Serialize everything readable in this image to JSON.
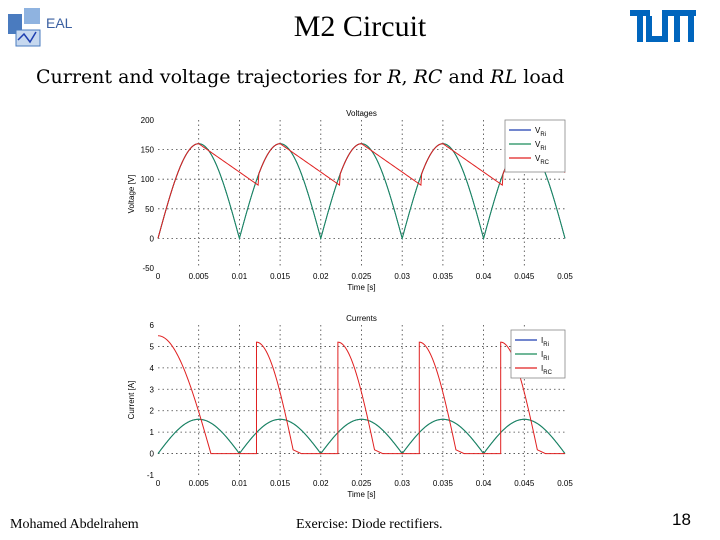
{
  "slide": {
    "logo_left_text": "EAL",
    "title": "M2 Circuit",
    "subtitle_parts": [
      "Current and voltage trajectories for ",
      "R",
      ", ",
      "RC",
      " and ",
      "RL",
      " load"
    ],
    "footer_author": "Mohamed Abdelrahem",
    "footer_topic": "Exercise: Diode rectifiers.",
    "page_number": "18"
  },
  "colors": {
    "blue": "#1f3fb0",
    "green": "#1a8c5a",
    "red": "#e02020"
  },
  "chart_data": [
    {
      "type": "line",
      "title": "Voltages",
      "xlabel": "Time [s]",
      "ylabel": "Voltage [V]",
      "xlim": [
        0,
        0.05
      ],
      "ylim": [
        -50,
        200
      ],
      "xticks": [
        "0",
        "0.005",
        "0.01",
        "0.015",
        "0.02",
        "0.025",
        "0.03",
        "0.035",
        "0.04",
        "0.045",
        "0.05"
      ],
      "yticks": [
        "-50",
        "0",
        "50",
        "100",
        "150",
        "200"
      ],
      "grid": true,
      "legend_position": "top-right",
      "legend": [
        {
          "base": "V",
          "sub": "Ri"
        },
        {
          "base": "V",
          "sub": "Rl"
        },
        {
          "base": "V",
          "sub": "RC"
        }
      ],
      "series": [
        {
          "color_key": "blue",
          "peak": 160,
          "period": 0.01,
          "kind": "rectified"
        },
        {
          "color_key": "green",
          "peak": 160,
          "period": 0.01,
          "kind": "rectified"
        },
        {
          "color_key": "red",
          "peak": 160,
          "period": 0.01,
          "kind": "rc",
          "discharge_end": 90
        }
      ]
    },
    {
      "type": "line",
      "title": "Currents",
      "xlabel": "Time [s]",
      "ylabel": "Current [A]",
      "xlim": [
        0,
        0.05
      ],
      "ylim": [
        -1,
        6
      ],
      "xticks": [
        "0",
        "0.005",
        "0.01",
        "0.015",
        "0.02",
        "0.025",
        "0.03",
        "0.035",
        "0.04",
        "0.045",
        "0.05"
      ],
      "yticks": [
        "-1",
        "0",
        "1",
        "2",
        "3",
        "4",
        "5",
        "6"
      ],
      "grid": true,
      "legend_position": "top-right",
      "legend": [
        {
          "base": "I",
          "sub": "Ri"
        },
        {
          "base": "I",
          "sub": "Rl"
        },
        {
          "base": "I",
          "sub": "RC"
        }
      ],
      "series": [
        {
          "color_key": "blue",
          "peak": 1.6,
          "period": 0.01,
          "kind": "rectified"
        },
        {
          "color_key": "green",
          "peak": 1.6,
          "period": 0.01,
          "kind": "rectified"
        },
        {
          "color_key": "red",
          "kind": "rc_current",
          "peak": 5.5
        }
      ]
    }
  ]
}
